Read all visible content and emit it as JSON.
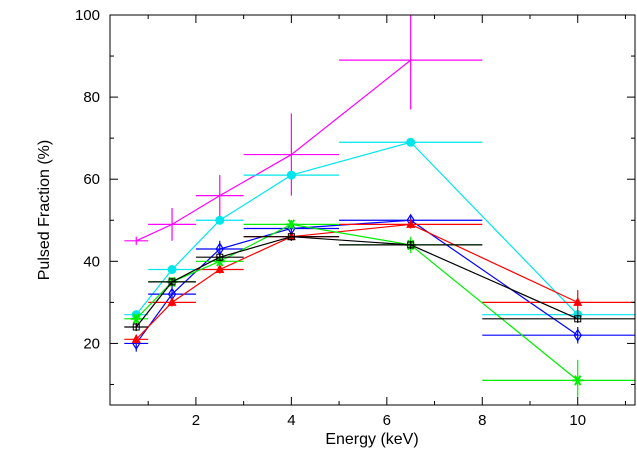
{
  "chart_data": {
    "type": "scatter",
    "title": "",
    "xlabel": "Energy (keV)",
    "ylabel": "Pulsed Fraction (%)",
    "xlim": [
      0.2,
      11.2
    ],
    "ylim": [
      5,
      100
    ],
    "xticks": [
      2,
      4,
      6,
      8,
      10
    ],
    "yticks": [
      20,
      40,
      60,
      80,
      100
    ],
    "grid": false,
    "series": [
      {
        "color": "#ff00ff",
        "marker": "cross",
        "points": [
          {
            "x": 0.75,
            "xlo": 0.5,
            "xhi": 1.0,
            "y": 45,
            "ylo": 44,
            "yhi": 46
          },
          {
            "x": 1.5,
            "xlo": 1.0,
            "xhi": 2.0,
            "y": 49,
            "ylo": 45,
            "yhi": 53
          },
          {
            "x": 2.5,
            "xlo": 2.0,
            "xhi": 3.0,
            "y": 56,
            "ylo": 51,
            "yhi": 61
          },
          {
            "x": 4.0,
            "xlo": 3.0,
            "xhi": 5.0,
            "y": 66,
            "ylo": 56,
            "yhi": 76
          },
          {
            "x": 6.5,
            "xlo": 5.0,
            "xhi": 8.0,
            "y": 89,
            "ylo": 77,
            "yhi": 102
          }
        ]
      },
      {
        "color": "#00e5ee",
        "marker": "filled-circle",
        "points": [
          {
            "x": 0.75,
            "xlo": 0.5,
            "xhi": 1.0,
            "y": 27,
            "ylo": 26,
            "yhi": 28
          },
          {
            "x": 1.5,
            "xlo": 1.0,
            "xhi": 2.0,
            "y": 38,
            "ylo": 37,
            "yhi": 39
          },
          {
            "x": 2.5,
            "xlo": 2.0,
            "xhi": 3.0,
            "y": 50,
            "ylo": 49,
            "yhi": 51
          },
          {
            "x": 4.0,
            "xlo": 3.0,
            "xhi": 5.0,
            "y": 61,
            "ylo": 60,
            "yhi": 62
          },
          {
            "x": 6.5,
            "xlo": 5.0,
            "xhi": 8.0,
            "y": 69,
            "ylo": 68,
            "yhi": 70
          },
          {
            "x": 10.0,
            "xlo": 8.0,
            "xhi": 12.0,
            "y": 27,
            "ylo": 26,
            "yhi": 28
          }
        ]
      },
      {
        "color": "#0000ff",
        "marker": "open-diamond",
        "points": [
          {
            "x": 0.75,
            "xlo": 0.5,
            "xhi": 1.0,
            "y": 20,
            "ylo": 18,
            "yhi": 22
          },
          {
            "x": 1.5,
            "xlo": 1.0,
            "xhi": 2.0,
            "y": 32,
            "ylo": 30,
            "yhi": 34
          },
          {
            "x": 2.5,
            "xlo": 2.0,
            "xhi": 3.0,
            "y": 43,
            "ylo": 41,
            "yhi": 45
          },
          {
            "x": 4.0,
            "xlo": 3.0,
            "xhi": 5.0,
            "y": 48,
            "ylo": 46,
            "yhi": 50
          },
          {
            "x": 6.5,
            "xlo": 5.0,
            "xhi": 8.0,
            "y": 50,
            "ylo": 49,
            "yhi": 51
          },
          {
            "x": 10.0,
            "xlo": 8.0,
            "xhi": 12.0,
            "y": 22,
            "ylo": 20,
            "yhi": 24
          }
        ]
      },
      {
        "color": "#ff0000",
        "marker": "filled-triangle",
        "points": [
          {
            "x": 0.75,
            "xlo": 0.5,
            "xhi": 1.0,
            "y": 21,
            "ylo": 20,
            "yhi": 22
          },
          {
            "x": 1.5,
            "xlo": 1.0,
            "xhi": 2.0,
            "y": 30,
            "ylo": 29,
            "yhi": 31
          },
          {
            "x": 2.5,
            "xlo": 2.0,
            "xhi": 3.0,
            "y": 38,
            "ylo": 37,
            "yhi": 39
          },
          {
            "x": 4.0,
            "xlo": 3.0,
            "xhi": 5.0,
            "y": 46,
            "ylo": 45,
            "yhi": 47
          },
          {
            "x": 6.5,
            "xlo": 5.0,
            "xhi": 8.0,
            "y": 49,
            "ylo": 48,
            "yhi": 50
          },
          {
            "x": 10.0,
            "xlo": 8.0,
            "xhi": 12.0,
            "y": 30,
            "ylo": 27,
            "yhi": 33
          }
        ]
      },
      {
        "color": "#00ee00",
        "marker": "star",
        "points": [
          {
            "x": 0.75,
            "xlo": 0.5,
            "xhi": 1.0,
            "y": 26,
            "ylo": 25,
            "yhi": 27
          },
          {
            "x": 1.5,
            "xlo": 1.0,
            "xhi": 2.0,
            "y": 35,
            "ylo": 34,
            "yhi": 36
          },
          {
            "x": 2.5,
            "xlo": 2.0,
            "xhi": 3.0,
            "y": 40,
            "ylo": 39,
            "yhi": 41
          },
          {
            "x": 4.0,
            "xlo": 3.0,
            "xhi": 5.0,
            "y": 49,
            "ylo": 48,
            "yhi": 50
          },
          {
            "x": 6.5,
            "xlo": 5.0,
            "xhi": 8.0,
            "y": 44,
            "ylo": 42,
            "yhi": 46
          },
          {
            "x": 10.0,
            "xlo": 8.0,
            "xhi": 12.0,
            "y": 11,
            "ylo": 7,
            "yhi": 16
          }
        ]
      },
      {
        "color": "#000000",
        "marker": "open-square",
        "points": [
          {
            "x": 0.75,
            "xlo": 0.5,
            "xhi": 1.0,
            "y": 24,
            "ylo": 23,
            "yhi": 25
          },
          {
            "x": 1.5,
            "xlo": 1.0,
            "xhi": 2.0,
            "y": 35,
            "ylo": 34,
            "yhi": 36
          },
          {
            "x": 2.5,
            "xlo": 2.0,
            "xhi": 3.0,
            "y": 41,
            "ylo": 40,
            "yhi": 42
          },
          {
            "x": 4.0,
            "xlo": 3.0,
            "xhi": 5.0,
            "y": 46,
            "ylo": 45,
            "yhi": 47
          },
          {
            "x": 6.5,
            "xlo": 5.0,
            "xhi": 8.0,
            "y": 44,
            "ylo": 43,
            "yhi": 45
          },
          {
            "x": 10.0,
            "xlo": 8.0,
            "xhi": 12.0,
            "y": 26,
            "ylo": 25,
            "yhi": 27
          }
        ]
      }
    ]
  }
}
